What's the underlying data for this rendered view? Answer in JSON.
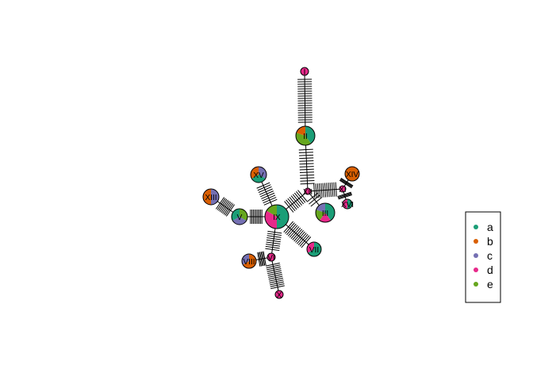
{
  "colors": {
    "a": "#1B9E77",
    "b": "#D95F02",
    "c": "#7570B3",
    "d": "#E7298A",
    "e": "#66A61E"
  },
  "legend": {
    "items": [
      {
        "key": "a",
        "label": "a"
      },
      {
        "key": "b",
        "label": "b"
      },
      {
        "key": "c",
        "label": "c"
      },
      {
        "key": "d",
        "label": "d"
      },
      {
        "key": "e",
        "label": "e"
      }
    ]
  },
  "nodes": [
    {
      "id": "I",
      "label": "I",
      "slices": {
        "d": 1
      }
    },
    {
      "id": "II",
      "label": "II",
      "slices": {
        "a": 2,
        "e": 2,
        "b": 1
      }
    },
    {
      "id": "III",
      "label": "III",
      "slices": {
        "a": 2,
        "d": 1,
        "e": 1,
        "c": 1
      }
    },
    {
      "id": "IV",
      "label": "IV",
      "slices": {
        "e": 2,
        "b": 1,
        "c": 1
      }
    },
    {
      "id": "V",
      "label": "V",
      "slices": {
        "e": 1,
        "c": 1,
        "a": 1
      }
    },
    {
      "id": "VI",
      "label": "VI",
      "slices": {
        "d": 1
      }
    },
    {
      "id": "VII",
      "label": "VII",
      "slices": {
        "a": 2,
        "d": 1
      }
    },
    {
      "id": "VIII",
      "label": "VIII",
      "slices": {
        "b": 2,
        "c": 1
      }
    },
    {
      "id": "IX",
      "label": "IX",
      "slices": {
        "a": 3,
        "d": 2,
        "e": 1
      }
    },
    {
      "id": "X",
      "label": "X",
      "slices": {
        "d": 1
      }
    },
    {
      "id": "XI",
      "label": "XI",
      "slices": {
        "d": 1
      }
    },
    {
      "id": "XII",
      "label": "XII",
      "slices": {
        "d": 1
      }
    },
    {
      "id": "XIII",
      "label": "XIII",
      "slices": {
        "c": 1,
        "b": 1
      }
    },
    {
      "id": "XIV",
      "label": "XIV",
      "slices": {
        "b": 1
      }
    },
    {
      "id": "XV",
      "label": "XV",
      "slices": {
        "c": 1,
        "a": 1,
        "b": 1
      }
    },
    {
      "id": "XVI",
      "label": "XVI",
      "slices": {
        "a": 1,
        "d": 1
      }
    },
    {
      "id": "XVII",
      "label": "XVII",
      "slices": {
        "b": 1,
        "c": 1,
        "a": 1
      }
    }
  ],
  "edges": [
    {
      "from": "IX",
      "to": "XII",
      "steps": 9
    },
    {
      "from": "XII",
      "to": "II",
      "steps": 13
    },
    {
      "from": "II",
      "to": "I",
      "steps": 19
    },
    {
      "from": "XII",
      "to": "III",
      "steps": 3
    },
    {
      "from": "XII",
      "to": "XI",
      "steps": 13
    },
    {
      "from": "XI",
      "to": "XIV",
      "steps": 4
    },
    {
      "from": "XI",
      "to": "XVI",
      "steps": 4
    },
    {
      "from": "IX",
      "to": "XV",
      "steps": 9
    },
    {
      "from": "IX",
      "to": "V",
      "steps": 9
    },
    {
      "from": "V",
      "to": "XIII",
      "steps": 9
    },
    {
      "from": "IX",
      "to": "VII",
      "steps": 13
    },
    {
      "from": "IX",
      "to": "VI",
      "steps": 9
    },
    {
      "from": "VI",
      "to": "VIII",
      "steps": 6
    },
    {
      "from": "VI",
      "to": "X",
      "steps": 13
    }
  ]
}
